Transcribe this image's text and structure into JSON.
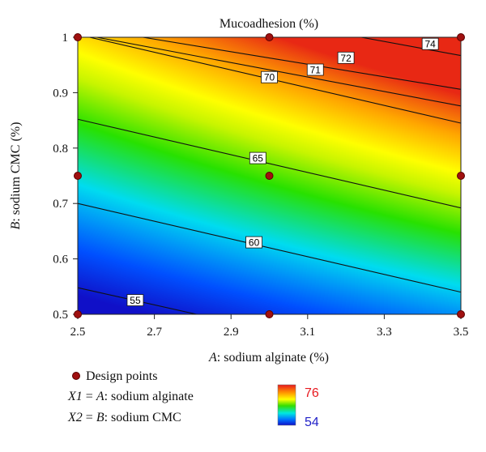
{
  "chart_data": {
    "type": "contour",
    "title": "Mucoadhesion (%)",
    "x_axis": {
      "label_var": "A",
      "label_text": ": sodium alginate (%)",
      "range": [
        2.5,
        3.5
      ],
      "ticks": [
        "2.5",
        "2.7",
        "2.9",
        "3.1",
        "3.3",
        "3.5"
      ]
    },
    "y_axis": {
      "label_var": "B",
      "label_text": ": sodium CMC (%)",
      "range": [
        0.5,
        1.0
      ],
      "ticks": [
        "0.5",
        "0.6",
        "0.7",
        "0.8",
        "0.9",
        "1"
      ]
    },
    "z_range": [
      54,
      76
    ],
    "colorbar": {
      "max_label": "76",
      "min_label": "54",
      "max_color": "#e8191f",
      "min_color": "#2222c8"
    },
    "contours": [
      {
        "level": "55",
        "x0": 2.5,
        "y0": 0.548,
        "x1": 2.81,
        "y1": 0.5,
        "label_x": 2.65,
        "label_y": 0.5255
      },
      {
        "level": "60",
        "x0": 2.5,
        "y0": 0.7,
        "x1": 3.5,
        "y1": 0.54,
        "label_x": 2.96,
        "label_y": 0.63
      },
      {
        "level": "65",
        "x0": 2.5,
        "y0": 0.852,
        "x1": 3.5,
        "y1": 0.692,
        "label_x": 2.97,
        "label_y": 0.782
      },
      {
        "level": "70",
        "x0": 2.5,
        "y0": 1.005,
        "x1": 3.5,
        "y1": 0.845,
        "label_x": 3.0,
        "label_y": 0.928
      },
      {
        "level": "71",
        "x0": 2.55,
        "y0": 1.0,
        "x1": 3.5,
        "y1": 0.876,
        "label_x": 3.12,
        "label_y": 0.9415
      },
      {
        "level": "72",
        "x0": 2.67,
        "y0": 1.0,
        "x1": 3.5,
        "y1": 0.906,
        "label_x": 3.2,
        "label_y": 0.963
      },
      {
        "level": "74",
        "x0": 3.24,
        "y0": 1.0,
        "x1": 3.5,
        "y1": 0.967,
        "label_x": 3.42,
        "label_y": 0.988
      }
    ],
    "design_points": [
      {
        "x": 2.5,
        "y": 1.0
      },
      {
        "x": 3.0,
        "y": 1.0
      },
      {
        "x": 3.5,
        "y": 1.0
      },
      {
        "x": 2.5,
        "y": 0.75
      },
      {
        "x": 3.0,
        "y": 0.75
      },
      {
        "x": 3.5,
        "y": 0.75
      },
      {
        "x": 2.5,
        "y": 0.5
      },
      {
        "x": 3.0,
        "y": 0.5
      },
      {
        "x": 3.5,
        "y": 0.5
      }
    ],
    "design_point_color": "#a01010"
  },
  "legend": {
    "design_points_label": "Design points",
    "x1_line": {
      "var": "X1",
      "eq": " = ",
      "factor": "A",
      "rest": ": sodium alginate"
    },
    "x2_line": {
      "var": "X2",
      "eq": " = ",
      "factor": "B",
      "rest": ": sodium CMC"
    }
  }
}
